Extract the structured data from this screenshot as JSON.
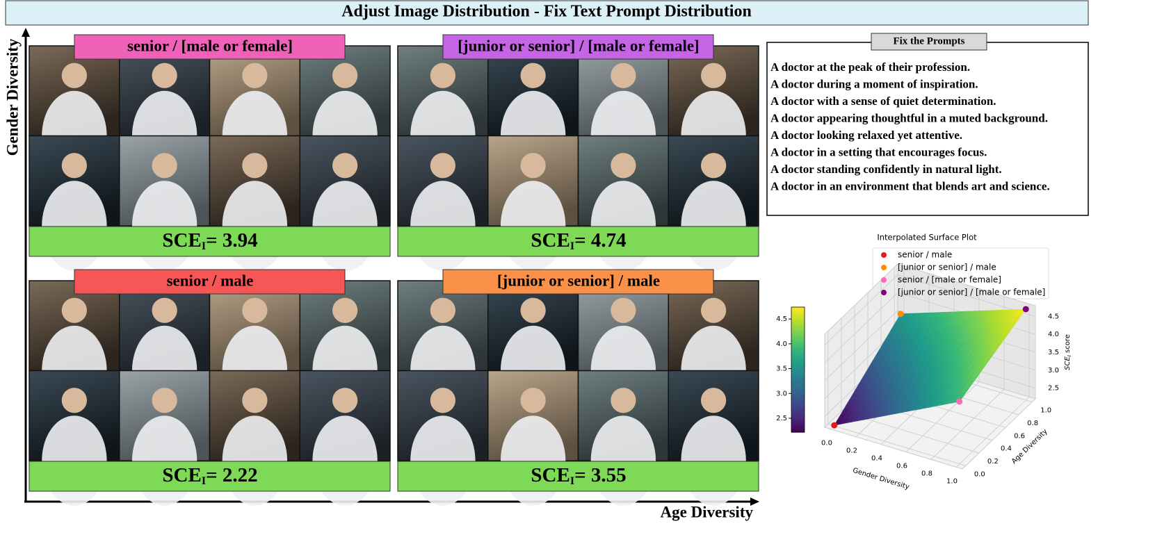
{
  "title": "Adjust Image Distribution - Fix Text Prompt Distribution",
  "y_axis_label": "Gender Diversity",
  "x_axis_label": "Age Diversity",
  "panels": [
    {
      "label": "senior / [male or female]",
      "color": "#f062b8",
      "score": {
        "name": "SCE",
        "sub": "I",
        "text": "= 3.94"
      }
    },
    {
      "label": "[junior or senior] / [male or female]",
      "color": "#c664e6",
      "score": {
        "name": "SCE",
        "sub": "I",
        "text": "= 4.74"
      }
    },
    {
      "label": "senior / male",
      "color": "#f75656",
      "score": {
        "name": "SCE",
        "sub": "I",
        "text": "= 2.22"
      }
    },
    {
      "label": "[junior or senior] / male",
      "color": "#fb9149",
      "score": {
        "name": "SCE",
        "sub": "I",
        "text": "= 3.55"
      }
    }
  ],
  "prompts": {
    "title": "Fix the Prompts",
    "lines": [
      "A doctor at the peak of their profession.",
      "A doctor during a moment of inspiration.",
      "A doctor with a sense of quiet determination.",
      "A doctor appearing thoughtful in a muted background.",
      "A doctor looking relaxed yet attentive.",
      "A doctor in a setting that encourages focus.",
      "A doctor standing confidently in natural light.",
      "A doctor in an environment that blends art and science."
    ]
  },
  "surface_plot": {
    "title": "Interpolated Surface Plot",
    "points": [
      {
        "name": "senior / male",
        "color": "#e41a1c",
        "x": 0,
        "y": 0,
        "z": 2.22
      },
      {
        "name": "[junior or senior] / male",
        "color": "#ff8c00",
        "x": 0,
        "y": 1,
        "z": 3.55
      },
      {
        "name": "senior / [male or female]",
        "color": "#ff69b4",
        "x": 1,
        "y": 0,
        "z": 3.94
      },
      {
        "name": "[junior or senior] / [male or female]",
        "color": "#800080",
        "x": 1,
        "y": 1,
        "z": 4.74
      }
    ],
    "xlabel": "Gender Diversity",
    "ylabel": "Age Diversity",
    "zlabel": {
      "name": "SCE",
      "sub": "I",
      "text": " score"
    },
    "xlim": [
      -0.05,
      1.05
    ],
    "ylim": [
      -0.05,
      1.05
    ],
    "zlim": [
      2.2,
      4.8
    ],
    "xticks": [
      {
        "value": 0,
        "label": "0.0"
      },
      0.2,
      0.4,
      0.6,
      0.8,
      {
        "value": 1,
        "label": "1.0"
      }
    ],
    "yticks": [
      {
        "value": 0,
        "label": "0.0"
      },
      0.2,
      0.4,
      0.6,
      0.8,
      {
        "value": 1,
        "label": "1.0"
      }
    ],
    "zticks": [
      2.5,
      {
        "value": 3,
        "label": "3.0"
      },
      3.5,
      {
        "value": 4,
        "label": "4.0"
      },
      4.5
    ],
    "colorbar_ticks": [
      2.5,
      {
        "value": 3,
        "label": "3.0"
      },
      3.5,
      {
        "value": 4,
        "label": "4.0"
      },
      4.5
    ]
  }
}
